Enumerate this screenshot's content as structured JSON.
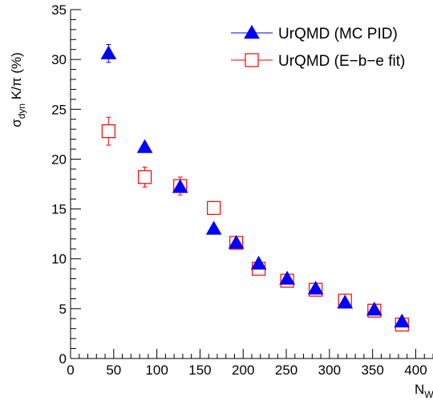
{
  "chart_data": {
    "type": "scatter",
    "ylabel": {
      "main": "σ",
      "sub": "dyn",
      "rest": " K/π (%)"
    },
    "xlabel": {
      "main": "N",
      "sub": "W"
    },
    "xlim": [
      0,
      420
    ],
    "ylim": [
      0,
      35
    ],
    "x_ticks": [
      0,
      50,
      100,
      150,
      200,
      250,
      300,
      350,
      400
    ],
    "y_ticks": [
      0,
      5,
      10,
      15,
      20,
      25,
      30,
      35
    ],
    "x_tick_labels": [
      "0",
      "50",
      "100",
      "150",
      "200",
      "250",
      "300",
      "350",
      "400"
    ],
    "y_tick_labels": [
      "0",
      "5",
      "10",
      "15",
      "20",
      "25",
      "30",
      "35"
    ],
    "grid": false,
    "legend_position": "top-right",
    "series": [
      {
        "name": "UrQMD (MC PID)",
        "marker": "filled-triangle",
        "color": "#0000ff",
        "x": [
          44,
          86,
          127,
          166,
          192,
          218,
          251,
          284,
          318,
          352,
          384
        ],
        "y": [
          30.6,
          21.2,
          17.2,
          13.0,
          11.6,
          9.5,
          8.0,
          7.0,
          5.6,
          4.9,
          3.7
        ],
        "err": [
          0.9,
          0.3,
          0.3,
          0.2,
          0.2,
          0.2,
          0.2,
          0.2,
          0.2,
          0.2,
          0.2
        ]
      },
      {
        "name": "UrQMD (E−b−e fit)",
        "marker": "open-square",
        "color": "#ff0000",
        "x": [
          44,
          86,
          127,
          166,
          192,
          218,
          251,
          284,
          318,
          352,
          384
        ],
        "y": [
          22.8,
          18.2,
          17.3,
          15.1,
          11.6,
          9.0,
          7.8,
          6.9,
          5.8,
          4.8,
          3.4
        ],
        "err": [
          1.4,
          1.0,
          0.9,
          0.6,
          0.5,
          0.5,
          0.4,
          0.4,
          0.4,
          0.4,
          0.4
        ]
      }
    ]
  }
}
